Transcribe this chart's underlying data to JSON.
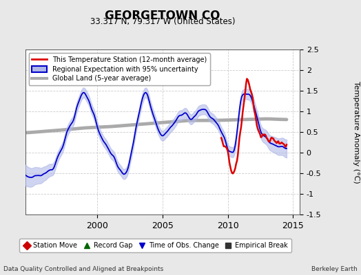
{
  "title": "GEORGETOWN CO",
  "subtitle": "33.317 N, 79.317 W (United States)",
  "ylabel": "Temperature Anomaly (°C)",
  "xlabel_left": "Data Quality Controlled and Aligned at Breakpoints",
  "xlabel_right": "Berkeley Earth",
  "ylim": [
    -1.5,
    2.5
  ],
  "xlim": [
    1994.5,
    2015.5
  ],
  "yticks": [
    -1.5,
    -1.0,
    -0.5,
    0.0,
    0.5,
    1.0,
    1.5,
    2.0,
    2.5
  ],
  "xticks": [
    2000,
    2005,
    2010,
    2015
  ],
  "bg_color": "#e8e8e8",
  "plot_bg_color": "#ffffff",
  "grid_color": "#cccccc",
  "station_line_color": "#dd0000",
  "regional_line_color": "#0000cc",
  "regional_fill_color": "#b0b8e8",
  "global_line_color": "#aaaaaa",
  "legend_entries": [
    "This Temperature Station (12-month average)",
    "Regional Expectation with 95% uncertainty",
    "Global Land (5-year average)"
  ],
  "marker_legend": [
    {
      "label": "Station Move",
      "color": "#cc0000",
      "marker": "D"
    },
    {
      "label": "Record Gap",
      "color": "#006600",
      "marker": "^"
    },
    {
      "label": "Time of Obs. Change",
      "color": "#0000cc",
      "marker": "v"
    },
    {
      "label": "Empirical Break",
      "color": "#333333",
      "marker": "s"
    }
  ]
}
